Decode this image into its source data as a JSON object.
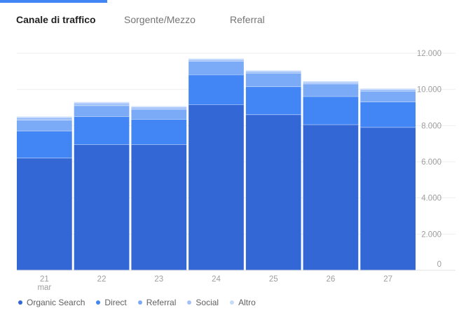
{
  "tabs": [
    {
      "label": "Canale di traffico",
      "active": true
    },
    {
      "label": "Sorgente/Mezzo",
      "active": false
    },
    {
      "label": "Referral",
      "active": false
    }
  ],
  "colors": {
    "Organic Search": "#3367d6",
    "Direct": "#4285f4",
    "Referral": "#7baaf7",
    "Social": "#a1c2fa",
    "Altro": "#c6dafc"
  },
  "chart_data": {
    "type": "bar",
    "stacked": true,
    "categories": [
      "21",
      "22",
      "23",
      "24",
      "25",
      "26",
      "27"
    ],
    "x_sublabels": [
      "mar",
      "",
      "",
      "",
      "",
      "",
      ""
    ],
    "series": [
      {
        "name": "Organic Search",
        "values": [
          6200,
          6950,
          6950,
          9150,
          8600,
          8050,
          7900
        ]
      },
      {
        "name": "Direct",
        "values": [
          1500,
          1550,
          1400,
          1650,
          1550,
          1550,
          1400
        ]
      },
      {
        "name": "Referral",
        "values": [
          600,
          600,
          550,
          750,
          750,
          700,
          600
        ]
      },
      {
        "name": "Social",
        "values": [
          150,
          150,
          120,
          100,
          100,
          100,
          100
        ]
      },
      {
        "name": "Altro",
        "values": [
          50,
          50,
          50,
          50,
          50,
          50,
          50
        ]
      }
    ],
    "y_ticks": [
      0,
      2000,
      4000,
      6000,
      8000,
      10000,
      12000
    ],
    "y_tick_labels": [
      "0",
      "2.000",
      "4.000",
      "6.000",
      "8.000",
      "10.000",
      "12.000"
    ],
    "ylim": [
      0,
      12000
    ],
    "y_axis_position": "right",
    "grid": true,
    "legend_position": "bottom-left"
  }
}
